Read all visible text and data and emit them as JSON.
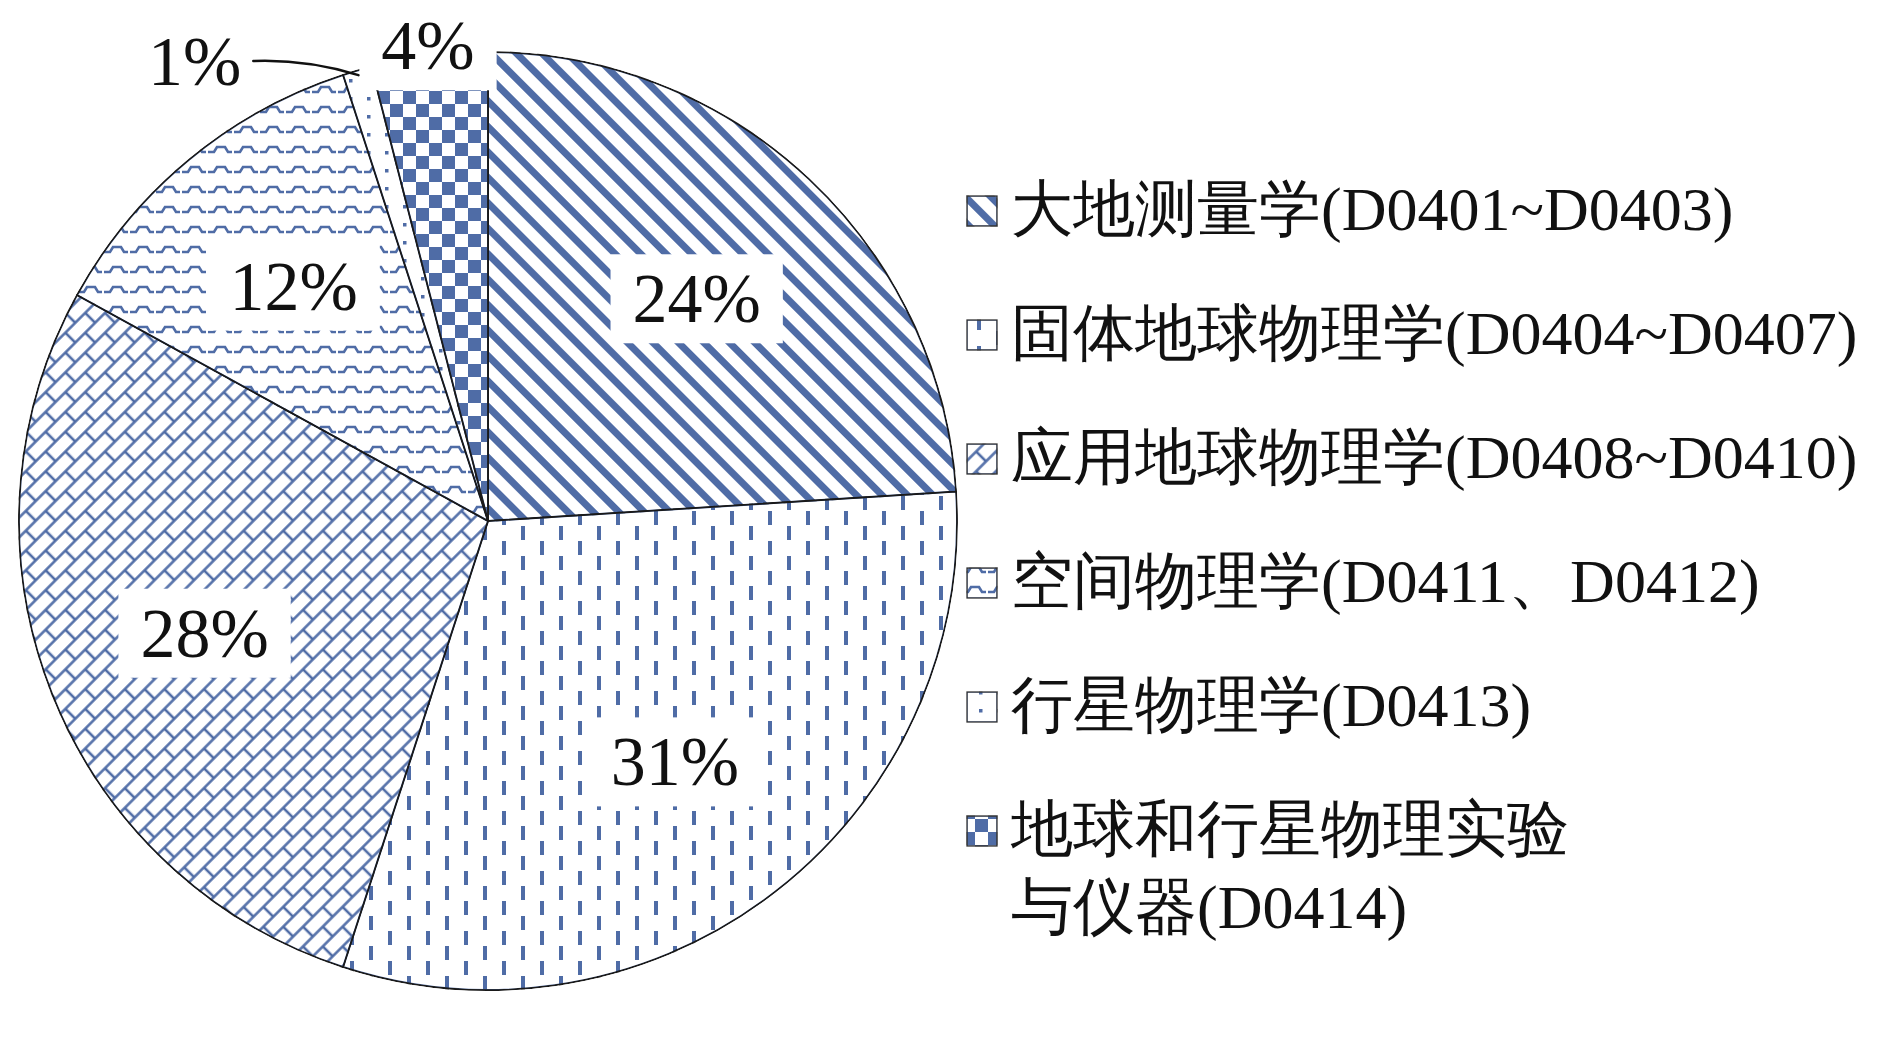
{
  "chart_data": {
    "type": "pie",
    "categories": [
      "大地测量学(D0401~D0403)",
      "固体地球物理学(D0404~D0407)",
      "应用地球物理学(D0408~D0410)",
      "空间物理学(D0411、D0412)",
      "行星物理学(D0413)",
      "地球和行星物理实验与仪器(D0414)"
    ],
    "values": [
      24,
      31,
      28,
      12,
      1,
      4
    ],
    "value_labels": [
      "24%",
      "31%",
      "28%",
      "12%",
      "1%",
      "4%"
    ],
    "colors": [
      "#4f6ca6",
      "#4f6ca6",
      "#4f6ca6",
      "#4f6ca6",
      "#4f6ca6",
      "#4f6ca6"
    ],
    "legend": "right"
  }
}
